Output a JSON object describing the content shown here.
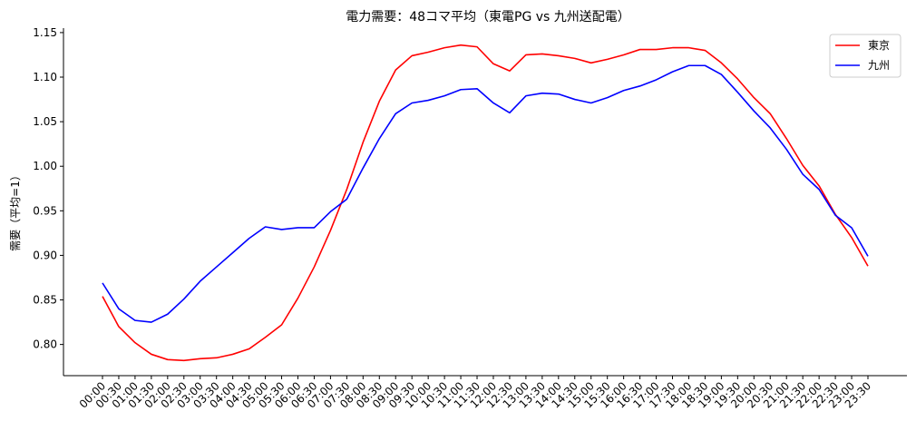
{
  "chart_data": {
    "type": "line",
    "title": "電力需要：48コマ平均（東電PG vs 九州送配電）",
    "xlabel": "",
    "ylabel": "需要（平均=1）",
    "ylim": [
      0.765,
      1.155
    ],
    "yticks": [
      0.8,
      0.85,
      0.9,
      0.95,
      1.0,
      1.05,
      1.1,
      1.15
    ],
    "ytick_labels": [
      "0.80",
      "0.85",
      "0.90",
      "0.95",
      "1.00",
      "1.05",
      "1.10",
      "1.15"
    ],
    "grid": false,
    "legend_position": "top-right",
    "categories": [
      "00:00",
      "00:30",
      "01:00",
      "01:30",
      "02:00",
      "02:30",
      "03:00",
      "03:30",
      "04:00",
      "04:30",
      "05:00",
      "05:30",
      "06:00",
      "06:30",
      "07:00",
      "07:30",
      "08:00",
      "08:30",
      "09:00",
      "09:30",
      "10:00",
      "10:30",
      "11:00",
      "11:30",
      "12:00",
      "12:30",
      "13:00",
      "13:30",
      "14:00",
      "14:30",
      "15:00",
      "15:30",
      "16:00",
      "16:30",
      "17:00",
      "17:30",
      "18:00",
      "18:30",
      "19:00",
      "19:30",
      "20:00",
      "20:30",
      "21:00",
      "21:30",
      "22:00",
      "22:30",
      "23:00",
      "23:30"
    ],
    "series": [
      {
        "name": "東京",
        "color": "#ff0000",
        "values": [
          0.854,
          0.82,
          0.802,
          0.789,
          0.783,
          0.782,
          0.784,
          0.785,
          0.789,
          0.795,
          0.808,
          0.822,
          0.852,
          0.887,
          0.928,
          0.974,
          1.027,
          1.073,
          1.108,
          1.124,
          1.128,
          1.133,
          1.136,
          1.134,
          1.115,
          1.107,
          1.125,
          1.126,
          1.124,
          1.121,
          1.116,
          1.12,
          1.125,
          1.131,
          1.131,
          1.133,
          1.133,
          1.13,
          1.116,
          1.098,
          1.077,
          1.059,
          1.031,
          1.001,
          0.978,
          0.946,
          0.92,
          0.888
        ]
      },
      {
        "name": "九州",
        "color": "#0000ff",
        "values": [
          0.869,
          0.84,
          0.827,
          0.825,
          0.834,
          0.851,
          0.871,
          0.887,
          0.903,
          0.919,
          0.932,
          0.929,
          0.931,
          0.931,
          0.949,
          0.963,
          0.998,
          1.031,
          1.059,
          1.071,
          1.074,
          1.079,
          1.086,
          1.087,
          1.071,
          1.06,
          1.079,
          1.082,
          1.081,
          1.075,
          1.071,
          1.077,
          1.085,
          1.09,
          1.097,
          1.106,
          1.113,
          1.113,
          1.103,
          1.083,
          1.062,
          1.043,
          1.019,
          0.991,
          0.974,
          0.945,
          0.931,
          0.899
        ]
      }
    ]
  }
}
